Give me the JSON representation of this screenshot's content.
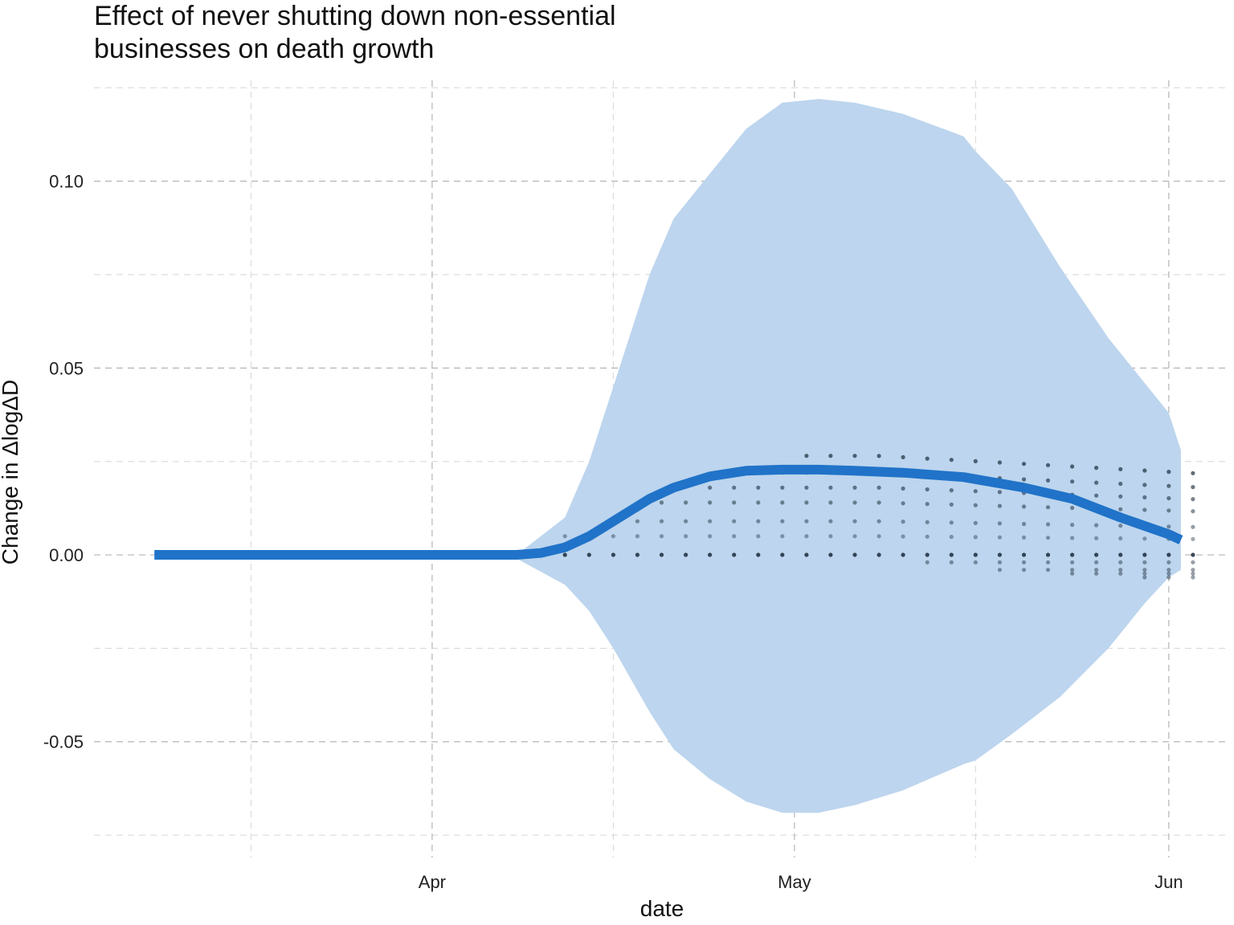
{
  "chart_data": {
    "type": "line",
    "title_lines": [
      "Effect of never shutting down non-essential",
      "businesses on death growth"
    ],
    "xlabel": "date",
    "ylabel": "Change in ΔlogΔD",
    "x_ticks": [
      {
        "label": "Apr",
        "date": "2020-04-01"
      },
      {
        "label": "May",
        "date": "2020-05-01"
      },
      {
        "label": "Jun",
        "date": "2020-06-01"
      }
    ],
    "x_minor_ticks": [
      "2020-03-17",
      "2020-04-16",
      "2020-05-16"
    ],
    "xlim": [
      "2020-03-04",
      "2020-06-06"
    ],
    "y_ticks": [
      {
        "label": "0.10",
        "value": 0.1
      },
      {
        "label": "0.05",
        "value": 0.05
      },
      {
        "label": "0.00",
        "value": 0.0
      },
      {
        "label": "-0.05",
        "value": -0.05
      }
    ],
    "y_minor_ticks": [
      0.125,
      0.075,
      0.025,
      -0.025,
      -0.075
    ],
    "ylim": [
      -0.081,
      0.127
    ],
    "grid": true,
    "colors": {
      "line": "#2073c8",
      "band": "#bdd5ee",
      "points": "#1a2a3a"
    },
    "series": [
      {
        "kind": "line",
        "x": [
          "2020-03-09",
          "2020-04-05",
          "2020-04-08",
          "2020-04-10",
          "2020-04-12",
          "2020-04-14",
          "2020-04-16",
          "2020-04-19",
          "2020-04-21",
          "2020-04-24",
          "2020-04-27",
          "2020-04-30",
          "2020-05-03",
          "2020-05-06",
          "2020-05-10",
          "2020-05-15",
          "2020-05-20",
          "2020-05-24",
          "2020-05-28",
          "2020-06-01",
          "2020-06-02"
        ],
        "y": [
          0.0,
          0.0,
          0.0,
          0.0005,
          0.002,
          0.005,
          0.009,
          0.015,
          0.018,
          0.021,
          0.0225,
          0.0228,
          0.0228,
          0.0225,
          0.022,
          0.0208,
          0.018,
          0.015,
          0.01,
          0.0055,
          0.004
        ]
      },
      {
        "kind": "band",
        "x": [
          "2020-04-08",
          "2020-04-12",
          "2020-04-14",
          "2020-04-16",
          "2020-04-19",
          "2020-04-21",
          "2020-04-24",
          "2020-04-27",
          "2020-04-30",
          "2020-05-03",
          "2020-05-06",
          "2020-05-10",
          "2020-05-15",
          "2020-05-16",
          "2020-05-19",
          "2020-05-23",
          "2020-05-27",
          "2020-05-30",
          "2020-06-01",
          "2020-06-02"
        ],
        "upper": [
          0.0,
          0.01,
          0.025,
          0.045,
          0.075,
          0.09,
          0.102,
          0.114,
          0.121,
          0.122,
          0.121,
          0.118,
          0.112,
          0.108,
          0.098,
          0.077,
          0.058,
          0.046,
          0.038,
          0.028
        ],
        "lower": [
          -0.001,
          -0.008,
          -0.015,
          -0.025,
          -0.042,
          -0.052,
          -0.06,
          -0.066,
          -0.069,
          -0.069,
          -0.067,
          -0.063,
          -0.056,
          -0.055,
          -0.048,
          -0.038,
          -0.025,
          -0.013,
          -0.006,
          -0.004
        ]
      }
    ],
    "scatter": {
      "start": "2020-04-06",
      "end": "2020-06-02",
      "step_days": 2,
      "levels": [
        0.0,
        0.005,
        0.009,
        0.014,
        0.018,
        0.022,
        0.0265
      ],
      "negative_levels": [
        -0.002,
        -0.004,
        -0.005,
        -0.006
      ]
    }
  }
}
